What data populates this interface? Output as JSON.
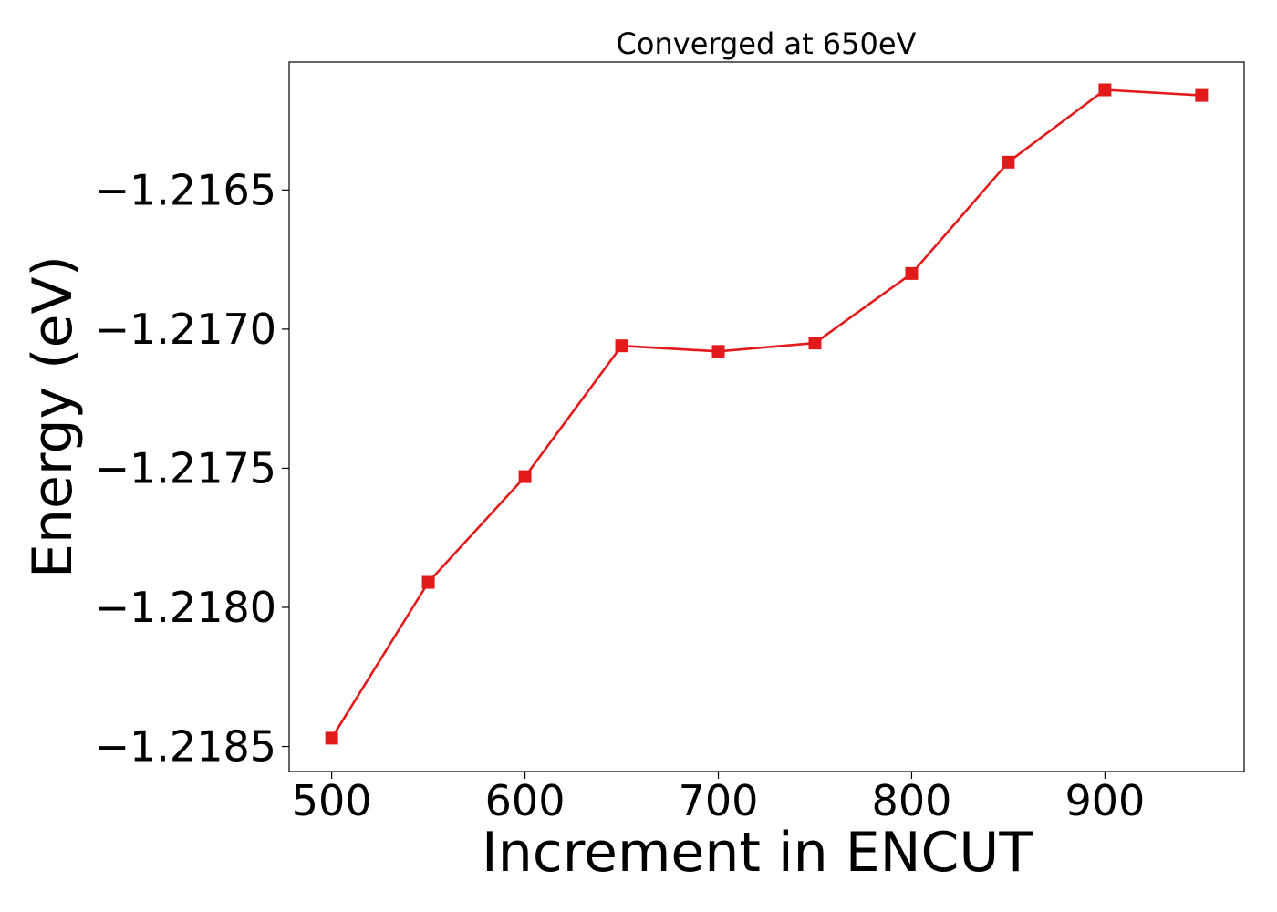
{
  "chart_data": {
    "type": "line",
    "title": "Converged at 650eV",
    "xlabel": "Increment in ENCUT",
    "ylabel": "Energy (eV)",
    "x": [
      500,
      550,
      600,
      650,
      700,
      750,
      800,
      850,
      900,
      950
    ],
    "series": [
      {
        "values": [
          -1.21847,
          -1.21791,
          -1.21753,
          -1.21706,
          -1.21708,
          -1.21705,
          -1.2168,
          -1.2164,
          -1.21614,
          -1.21616
        ],
        "color": "#e31a1c",
        "marker": "square"
      }
    ],
    "xticks": [
      500,
      600,
      700,
      800,
      900
    ],
    "xtick_labels": [
      "500",
      "600",
      "700",
      "800",
      "900"
    ],
    "yticks": [
      -1.2185,
      -1.218,
      -1.2175,
      -1.217,
      -1.2165
    ],
    "ytick_labels": [
      "−1.2185",
      "−1.2180",
      "−1.2175",
      "−1.2170",
      "−1.2165"
    ],
    "xlim": [
      478,
      972
    ],
    "ylim": [
      -1.21859,
      -1.21604
    ],
    "grid": false,
    "legend": false
  }
}
